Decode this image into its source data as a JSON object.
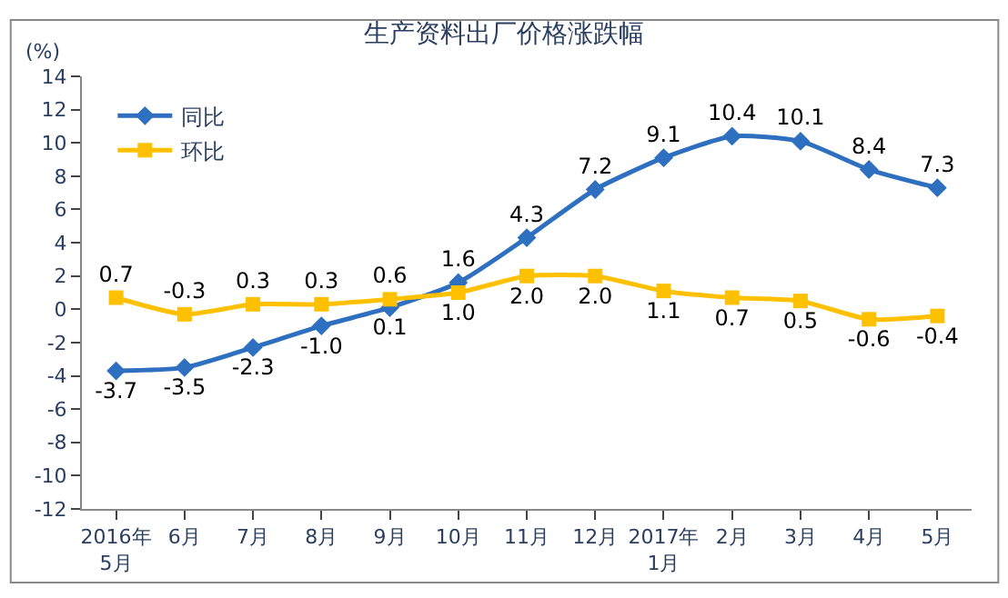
{
  "chart_data": {
    "type": "line",
    "title": "生产资料出厂价格涨跌幅",
    "ylabel": "(%)",
    "categories": [
      "2016年\n5月",
      "6月",
      "7月",
      "8月",
      "9月",
      "10月",
      "11月",
      "12月",
      "2017年\n1月",
      "2月",
      "3月",
      "4月",
      "5月"
    ],
    "series": [
      {
        "name": "同比",
        "color": "#2e6fbf",
        "marker": "diamond",
        "values": [
          -3.7,
          -3.5,
          -2.3,
          -1.0,
          0.1,
          1.6,
          4.3,
          7.2,
          9.1,
          10.4,
          10.1,
          8.4,
          7.3
        ],
        "value_labels": [
          "-3.7",
          "-3.5",
          "-2.3",
          "-1.0",
          "0.1",
          "1.6",
          "4.3",
          "7.2",
          "9.1",
          "10.4",
          "10.1",
          "8.4",
          "7.3"
        ]
      },
      {
        "name": "环比",
        "color": "#ffc000",
        "marker": "square",
        "values": [
          0.7,
          -0.3,
          0.3,
          0.3,
          0.6,
          1.0,
          2.0,
          2.0,
          1.1,
          0.7,
          0.5,
          -0.6,
          -0.4
        ],
        "value_labels": [
          "0.7",
          "-0.3",
          "0.3",
          "0.3",
          "0.6",
          "1.0",
          "2.0",
          "2.0",
          "1.1",
          "0.7",
          "0.5",
          "-0.6",
          "-0.4"
        ]
      }
    ],
    "ylim": [
      -12,
      14
    ],
    "yticks": [
      -12,
      -10,
      -8,
      -6,
      -4,
      -2,
      0,
      2,
      4,
      6,
      8,
      10,
      12,
      14
    ],
    "legend": "top left",
    "line_style": "solid"
  }
}
